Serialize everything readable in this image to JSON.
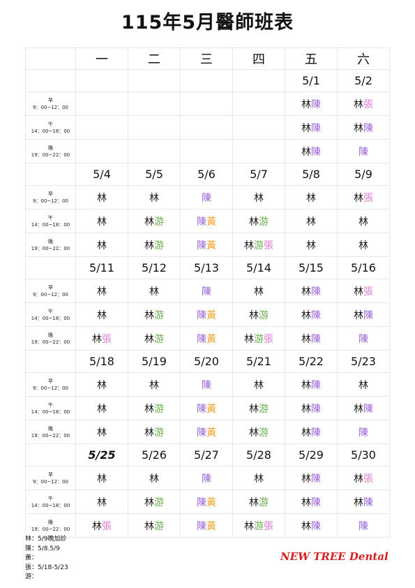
{
  "title": "115年5月醫師班表",
  "weekdays": [
    "一",
    "二",
    "三",
    "四",
    "五",
    "六"
  ],
  "shift_labels": [
    {
      "name": "早",
      "time": "9：00~12：00"
    },
    {
      "name": "午",
      "time": "14：00~18：00"
    },
    {
      "name": "晚",
      "time": "19：00~22：00"
    }
  ],
  "colors": {
    "林": "#1a1a1a",
    "陳": "#9a5fd6",
    "張": "#e07ad8",
    "游": "#6ab04c",
    "黃": "#f0a020"
  },
  "weeks": [
    {
      "dates": [
        "",
        "",
        "",
        "",
        "5/1",
        "5/2"
      ],
      "shifts": [
        [
          "",
          "",
          "",
          "",
          "林陳",
          "林張"
        ],
        [
          "",
          "",
          "",
          "",
          "林陳",
          "林陳"
        ],
        [
          "",
          "",
          "",
          "",
          "林陳",
          "陳"
        ]
      ]
    },
    {
      "dates": [
        "5/4",
        "5/5",
        "5/6",
        "5/7",
        "5/8",
        "5/9"
      ],
      "shifts": [
        [
          "林",
          "林",
          "陳",
          "林",
          "林",
          "林張"
        ],
        [
          "林",
          "林游",
          "陳黃",
          "林游",
          "林",
          "林"
        ],
        [
          "林",
          "林游",
          "陳黃",
          "林游張",
          "林",
          "林"
        ]
      ]
    },
    {
      "dates": [
        "5/11",
        "5/12",
        "5/13",
        "5/14",
        "5/15",
        "5/16"
      ],
      "shifts": [
        [
          "林",
          "林",
          "陳",
          "林",
          "林陳",
          "林張"
        ],
        [
          "林",
          "林游",
          "陳黃",
          "林游",
          "林陳",
          "林陳"
        ],
        [
          "林張",
          "林游",
          "陳黃",
          "林游張",
          "林陳",
          "陳"
        ]
      ]
    },
    {
      "dates": [
        "5/18",
        "5/19",
        "5/20",
        "5/21",
        "5/22",
        "5/23"
      ],
      "shifts": [
        [
          "林",
          "林",
          "陳",
          "林",
          "林陳",
          "林"
        ],
        [
          "林",
          "林游",
          "陳黃",
          "林游",
          "林陳",
          "林陳"
        ],
        [
          "林",
          "林游",
          "陳黃",
          "林游",
          "林陳",
          "陳"
        ]
      ]
    },
    {
      "dates": [
        "5/25",
        "5/26",
        "5/27",
        "5/28",
        "5/29",
        "5/30"
      ],
      "bold_first_date": true,
      "shifts": [
        [
          "林",
          "林",
          "陳",
          "林",
          "林陳",
          "林張"
        ],
        [
          "林",
          "林游",
          "陳黃",
          "林游",
          "林陳",
          "林陳"
        ],
        [
          "林張",
          "林游",
          "陳黃",
          "林游張",
          "林陳",
          "陳"
        ]
      ]
    }
  ],
  "notes": [
    "林：5/9晚加診",
    "陳：5/8.5/9",
    "黃：",
    "張：5/18-5/23",
    "游："
  ],
  "brand": "NEW TREE Dental"
}
